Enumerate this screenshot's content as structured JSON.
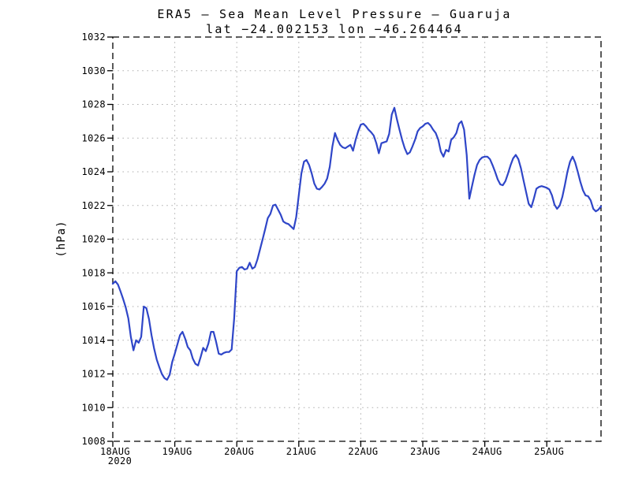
{
  "chart_data": {
    "type": "line",
    "title": "ERA5 — Sea Mean Level Pressure — Guaruja",
    "subtitle": "lat −24.002153 lon −46.264464",
    "xlabel": "",
    "ylabel": "(hPa)",
    "ylim": [
      1008,
      1032
    ],
    "ytick_step": 2,
    "y_tick_labels": [
      "1008",
      "1010",
      "1012",
      "1014",
      "1016",
      "1018",
      "1020",
      "1022",
      "1024",
      "1026",
      "1028",
      "1030",
      "1032"
    ],
    "x_day_tick_labels": [
      "18AUG",
      "19AUG",
      "20AUG",
      "21AUG",
      "22AUG",
      "23AUG",
      "24AUG",
      "25AUG"
    ],
    "year_label": "2020",
    "x_start": "18AUG2020 00:00",
    "x_interval_hours": 1,
    "grid": "dotted",
    "legend": "none",
    "line_color": "#2f46c8",
    "grid_color": "#b0b0b0",
    "frame_color": "#000000",
    "values": [
      1017.35,
      1017.5,
      1017.3,
      1016.9,
      1016.45,
      1015.95,
      1015.3,
      1014.2,
      1013.4,
      1014.0,
      1013.85,
      1014.2,
      1016.0,
      1015.9,
      1015.25,
      1014.3,
      1013.5,
      1012.85,
      1012.4,
      1012.0,
      1011.75,
      1011.65,
      1011.95,
      1012.7,
      1013.2,
      1013.75,
      1014.3,
      1014.5,
      1014.1,
      1013.6,
      1013.4,
      1012.9,
      1012.6,
      1012.5,
      1013.0,
      1013.55,
      1013.35,
      1013.8,
      1014.5,
      1014.5,
      1013.9,
      1013.2,
      1013.15,
      1013.25,
      1013.3,
      1013.3,
      1013.45,
      1015.3,
      1018.1,
      1018.3,
      1018.35,
      1018.2,
      1018.25,
      1018.6,
      1018.25,
      1018.35,
      1018.8,
      1019.4,
      1020.0,
      1020.6,
      1021.25,
      1021.5,
      1022.0,
      1022.05,
      1021.75,
      1021.45,
      1021.05,
      1020.95,
      1020.9,
      1020.75,
      1020.6,
      1021.3,
      1022.6,
      1023.9,
      1024.6,
      1024.7,
      1024.4,
      1023.9,
      1023.3,
      1023.0,
      1022.95,
      1023.1,
      1023.3,
      1023.6,
      1024.3,
      1025.5,
      1026.3,
      1025.9,
      1025.6,
      1025.45,
      1025.4,
      1025.5,
      1025.6,
      1025.25,
      1025.9,
      1026.4,
      1026.8,
      1026.85,
      1026.7,
      1026.5,
      1026.35,
      1026.15,
      1025.7,
      1025.1,
      1025.7,
      1025.75,
      1025.8,
      1026.25,
      1027.4,
      1027.8,
      1027.1,
      1026.5,
      1025.9,
      1025.4,
      1025.05,
      1025.15,
      1025.5,
      1025.9,
      1026.4,
      1026.6,
      1026.7,
      1026.85,
      1026.9,
      1026.75,
      1026.5,
      1026.3,
      1025.9,
      1025.2,
      1024.9,
      1025.3,
      1025.2,
      1025.9,
      1026.05,
      1026.3,
      1026.85,
      1027.0,
      1026.5,
      1025.0,
      1022.4,
      1023.1,
      1023.8,
      1024.4,
      1024.7,
      1024.85,
      1024.9,
      1024.9,
      1024.75,
      1024.4,
      1024.0,
      1023.55,
      1023.25,
      1023.2,
      1023.45,
      1023.9,
      1024.4,
      1024.8,
      1025.0,
      1024.75,
      1024.2,
      1023.5,
      1022.8,
      1022.1,
      1021.9,
      1022.4,
      1023.0,
      1023.1,
      1023.15,
      1023.1,
      1023.05,
      1022.95,
      1022.6,
      1022.05,
      1021.8,
      1022.0,
      1022.5,
      1023.2,
      1024.0,
      1024.6,
      1024.9,
      1024.55,
      1024.0,
      1023.4,
      1022.9,
      1022.6,
      1022.55,
      1022.3,
      1021.8,
      1021.65,
      1021.75,
      1021.95
    ]
  }
}
